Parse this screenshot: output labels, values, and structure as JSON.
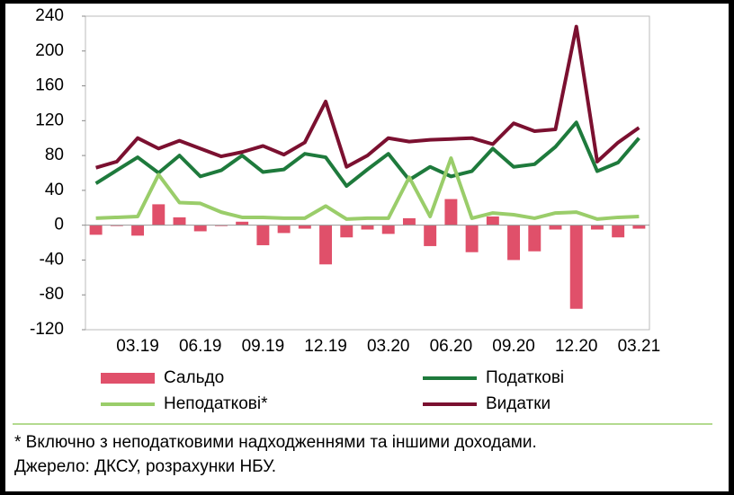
{
  "chart_data": {
    "type": "combo",
    "categories": [
      null,
      null,
      "03.19",
      null,
      null,
      "06.19",
      null,
      null,
      "09.19",
      null,
      null,
      "12.19",
      null,
      null,
      "03.20",
      null,
      null,
      "06.20",
      null,
      null,
      "09.20",
      null,
      null,
      "12.20",
      null,
      null,
      "03.21"
    ],
    "series": [
      {
        "name": "Сальдо",
        "type": "bar",
        "color": "#e0506a",
        "values": [
          -11,
          -1,
          -12,
          24,
          9,
          -7,
          -1,
          4,
          -23,
          -9,
          -4,
          -45,
          -14,
          -5,
          -10,
          8,
          -24,
          30,
          -31,
          10,
          -40,
          -30,
          -5,
          -96,
          -5,
          -14,
          -4
        ]
      },
      {
        "name": "Податкові",
        "type": "line",
        "color": "#1e7a3c",
        "values": [
          48,
          63,
          78,
          60,
          80,
          56,
          63,
          80,
          61,
          64,
          82,
          78,
          45,
          64,
          82,
          52,
          67,
          56,
          62,
          88,
          67,
          70,
          90,
          118,
          62,
          72,
          100
        ]
      },
      {
        "name": "Неподаткові*",
        "type": "line",
        "color": "#9acd6a",
        "values": [
          8,
          9,
          10,
          58,
          26,
          25,
          15,
          9,
          9,
          8,
          8,
          22,
          7,
          8,
          8,
          55,
          10,
          77,
          8,
          14,
          12,
          8,
          14,
          15,
          7,
          9,
          10
        ]
      },
      {
        "name": "Видатки",
        "type": "line",
        "color": "#7b1030",
        "values": [
          66,
          73,
          100,
          88,
          97,
          88,
          79,
          84,
          91,
          81,
          95,
          142,
          67,
          80,
          100,
          96,
          98,
          99,
          100,
          93,
          117,
          108,
          110,
          228,
          73,
          95,
          112
        ]
      }
    ],
    "ylim": [
      -120,
      240
    ],
    "yticks": [
      -120,
      -80,
      -40,
      0,
      40,
      80,
      120,
      160,
      200,
      240
    ],
    "notes": [
      "* Включно з неподатковими надходженнями та іншими доходами.",
      "Джерело: ДКСУ, розрахунки НБУ."
    ]
  }
}
